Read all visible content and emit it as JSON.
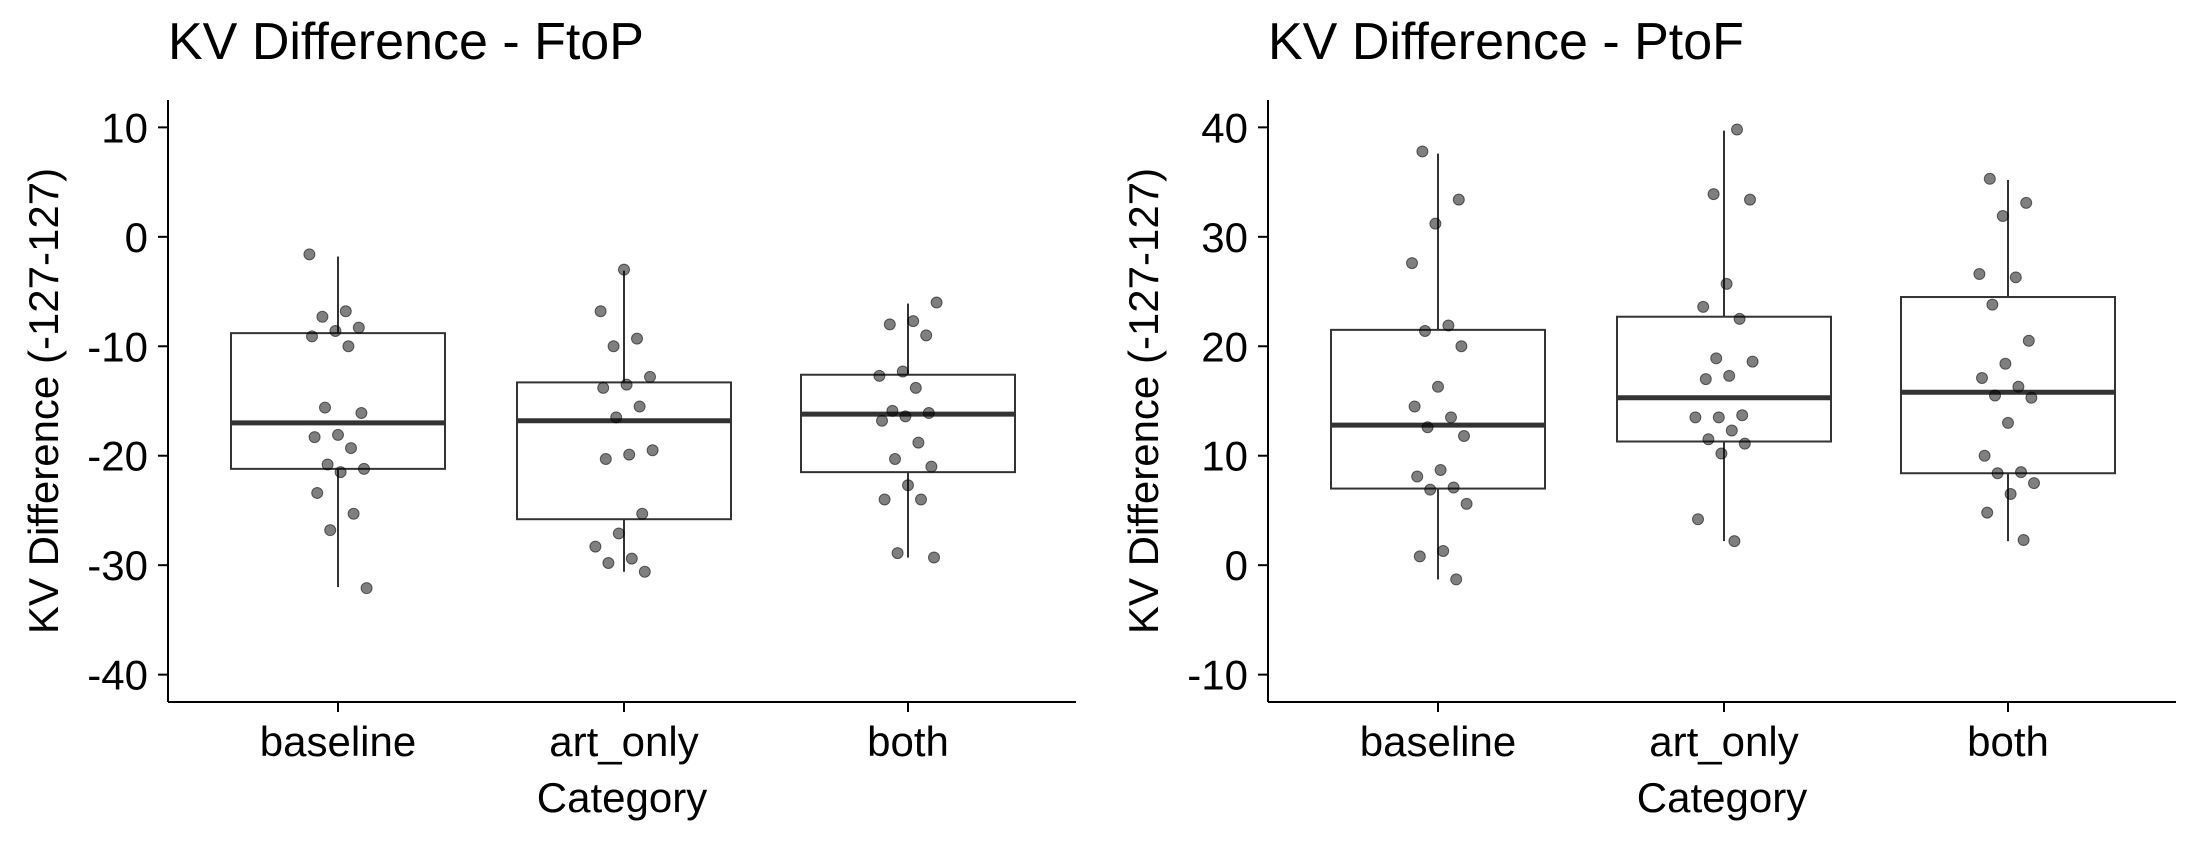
{
  "chart_data": [
    {
      "type": "box",
      "title": "KV Difference - FtoP",
      "xlabel": "Category",
      "ylabel": "KV Difference (-127-127)",
      "categories": [
        "baseline",
        "art_only",
        "both"
      ],
      "yticks": [
        10,
        0,
        -10,
        -20,
        -30,
        -40
      ],
      "ylim": [
        -42.5,
        12.5
      ],
      "grid": false,
      "boxes": [
        {
          "category": "baseline",
          "lower_whisker": -32,
          "q1": -21.2,
          "median": -17,
          "q3": -8.8,
          "upper_whisker": -1.8
        },
        {
          "category": "art_only",
          "lower_whisker": -30.6,
          "q1": -25.8,
          "median": -16.8,
          "q3": -13.3,
          "upper_whisker": -3.1
        },
        {
          "category": "both",
          "lower_whisker": -29.3,
          "q1": -21.5,
          "median": -16.2,
          "q3": -12.6,
          "upper_whisker": -6.1
        }
      ],
      "points": [
        {
          "category": "baseline",
          "values": [
            -1.6,
            -6.8,
            -7.3,
            -8.3,
            -8.6,
            -9.1,
            -10,
            -15.6,
            -16.1,
            -18.1,
            -18.3,
            -19.3,
            -20.8,
            -21.2,
            -21.5,
            -23.4,
            -25.3,
            -26.8,
            -32.1
          ]
        },
        {
          "category": "art_only",
          "values": [
            -3,
            -6.8,
            -9.3,
            -10,
            -12.8,
            -13.5,
            -13.8,
            -15.5,
            -16.5,
            -19.5,
            -19.9,
            -20.3,
            -25.3,
            -27.1,
            -28.3,
            -29.4,
            -29.8,
            -30.6
          ]
        },
        {
          "category": "both",
          "values": [
            -6,
            -7.7,
            -8,
            -9,
            -12.3,
            -12.7,
            -13.8,
            -15.9,
            -16.1,
            -16.4,
            -16.8,
            -18.8,
            -20.3,
            -21,
            -22.7,
            -24,
            -24,
            -28.9,
            -29.3
          ]
        }
      ]
    },
    {
      "type": "box",
      "title": "KV Difference - PtoF",
      "xlabel": "Category",
      "ylabel": "KV Difference (-127-127)",
      "categories": [
        "baseline",
        "art_only",
        "both"
      ],
      "yticks": [
        40,
        30,
        20,
        10,
        0,
        -10
      ],
      "ylim": [
        -12.5,
        42.5
      ],
      "grid": false,
      "boxes": [
        {
          "category": "baseline",
          "lower_whisker": -1.3,
          "q1": 7,
          "median": 12.8,
          "q3": 21.5,
          "upper_whisker": 37.6
        },
        {
          "category": "art_only",
          "lower_whisker": 2.2,
          "q1": 11.3,
          "median": 15.3,
          "q3": 22.7,
          "upper_whisker": 39.7
        },
        {
          "category": "both",
          "lower_whisker": 2.2,
          "q1": 8.4,
          "median": 15.8,
          "q3": 24.5,
          "upper_whisker": 35.2
        }
      ],
      "points": [
        {
          "category": "baseline",
          "values": [
            37.8,
            33.4,
            31.2,
            27.6,
            21.9,
            21.4,
            20,
            16.3,
            14.5,
            13.5,
            12.6,
            11.8,
            8.7,
            8.1,
            7.1,
            6.9,
            5.6,
            1.3,
            0.8,
            -1.3
          ]
        },
        {
          "category": "art_only",
          "values": [
            39.8,
            33.9,
            33.4,
            25.7,
            23.6,
            22.5,
            18.9,
            18.6,
            17.3,
            17,
            13.7,
            13.5,
            13.5,
            12.3,
            11.5,
            11.1,
            10.2,
            4.2,
            2.2
          ]
        },
        {
          "category": "both",
          "values": [
            35.3,
            33.1,
            31.9,
            26.6,
            26.3,
            23.8,
            20.5,
            18.4,
            17.1,
            16.3,
            15.5,
            15.3,
            13,
            10,
            8.5,
            8.4,
            7.5,
            6.5,
            4.8,
            2.3
          ]
        }
      ]
    }
  ]
}
